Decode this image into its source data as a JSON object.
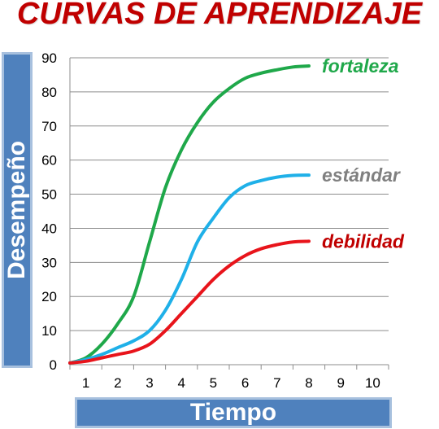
{
  "chart_data": {
    "type": "line",
    "title": "CURVAS DE APRENDIZAJE",
    "xlabel": "Tiempo",
    "ylabel": "Desempeño",
    "x_ticks": [
      "1",
      "2",
      "3",
      "4",
      "5",
      "6",
      "7",
      "8",
      "9",
      "10"
    ],
    "y_ticks": [
      "0",
      "10",
      "20",
      "30",
      "40",
      "50",
      "60",
      "70",
      "80",
      "90"
    ],
    "xlim": [
      0.5,
      10.5
    ],
    "ylim": [
      0,
      90
    ],
    "grid": true,
    "series": [
      {
        "name": "fortaleza",
        "color": "#1fa84a",
        "x": [
          0.5,
          1,
          1.5,
          2,
          2.5,
          3,
          3.5,
          4,
          4.5,
          5,
          5.5,
          6,
          6.5,
          7,
          7.5,
          8
        ],
        "y": [
          0.5,
          2,
          6,
          12,
          20,
          36,
          52,
          63,
          71,
          77,
          81,
          84,
          85.5,
          86.5,
          87.3,
          87.6
        ]
      },
      {
        "name": "estándar",
        "color": "#1fb0e8",
        "x": [
          0.5,
          1,
          1.5,
          2,
          2.5,
          3,
          3.5,
          4,
          4.5,
          5,
          5.5,
          6,
          6.5,
          7,
          7.5,
          8
        ],
        "y": [
          0.5,
          1.5,
          3,
          5,
          7,
          10,
          16,
          25,
          36,
          43,
          49,
          52.5,
          54,
          55,
          55.5,
          55.6
        ]
      },
      {
        "name": "debilidad",
        "color": "#e8141b",
        "x": [
          0.5,
          1,
          1.5,
          2,
          2.5,
          3,
          3.5,
          4,
          4.5,
          5,
          5.5,
          6,
          6.5,
          7,
          7.5,
          8
        ],
        "y": [
          0.5,
          1,
          2,
          3,
          4,
          6,
          10,
          15,
          20,
          25,
          29,
          32,
          34,
          35.2,
          36,
          36.2
        ]
      }
    ],
    "label_colors": {
      "fortaleza": "#1fa84a",
      "estándar": "#808080",
      "debilidad": "#c00000"
    }
  }
}
